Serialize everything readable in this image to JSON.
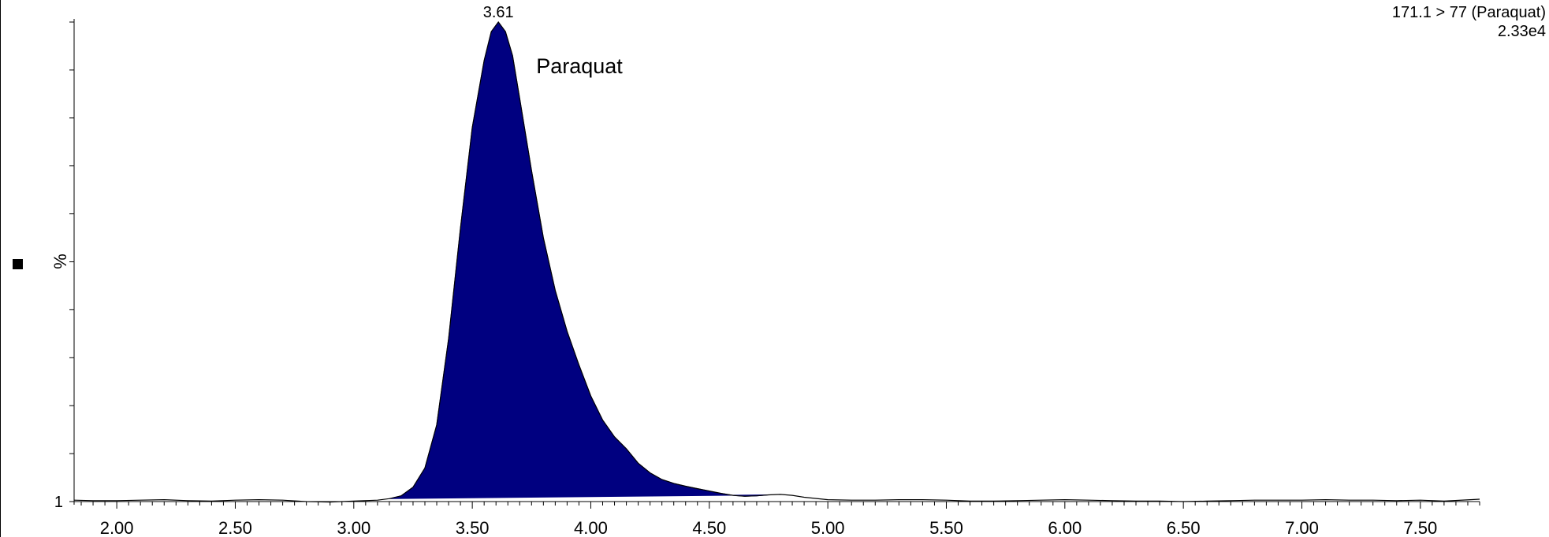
{
  "legend": {
    "trace": "171.1 > 77 (Paraquat)",
    "intensity": "2.33e4"
  },
  "chart_data": {
    "type": "area",
    "title": "",
    "xlabel": "",
    "ylabel": "%",
    "y_min_label": "1",
    "xlim": [
      1.82,
      7.75
    ],
    "ylim": [
      0,
      100
    ],
    "xticks": [
      "2.00",
      "2.50",
      "3.00",
      "3.50",
      "4.00",
      "4.50",
      "5.00",
      "5.50",
      "6.00",
      "6.50",
      "7.00",
      "7.50"
    ],
    "peak": {
      "retention_time": "3.61",
      "name": "Paraquat",
      "integration_start": 3.15,
      "integration_end": 4.75
    },
    "series": [
      {
        "x": [
          1.82,
          1.9,
          2.0,
          2.1,
          2.2,
          2.3,
          2.4,
          2.5,
          2.6,
          2.7,
          2.8,
          2.9,
          3.0,
          3.1,
          3.15,
          3.2,
          3.25,
          3.3,
          3.35,
          3.4,
          3.45,
          3.5,
          3.55,
          3.58,
          3.61,
          3.64,
          3.67,
          3.7,
          3.75,
          3.8,
          3.85,
          3.9,
          3.95,
          4.0,
          4.05,
          4.1,
          4.15,
          4.2,
          4.25,
          4.3,
          4.35,
          4.4,
          4.45,
          4.5,
          4.55,
          4.6,
          4.65,
          4.7,
          4.75,
          4.8,
          4.85,
          4.9,
          5.0,
          5.1,
          5.2,
          5.3,
          5.4,
          5.5,
          5.6,
          5.7,
          5.8,
          5.9,
          6.0,
          6.1,
          6.2,
          6.3,
          6.4,
          6.5,
          6.6,
          6.7,
          6.8,
          6.9,
          7.0,
          7.1,
          7.2,
          7.3,
          7.4,
          7.5,
          7.6,
          7.75
        ],
        "y": [
          0.3,
          0.2,
          0.2,
          0.3,
          0.4,
          0.2,
          0.1,
          0.3,
          0.4,
          0.3,
          0.0,
          -0.1,
          0.1,
          0.3,
          0.6,
          1.2,
          3.0,
          7.0,
          16.0,
          34.0,
          57.0,
          78.0,
          92.0,
          98.0,
          100.0,
          98.0,
          93.0,
          84.0,
          69.0,
          55.0,
          44.0,
          35.5,
          28.5,
          22.0,
          17.0,
          13.5,
          11.0,
          8.0,
          6.0,
          4.6,
          3.8,
          3.2,
          2.7,
          2.2,
          1.7,
          1.3,
          1.1,
          1.2,
          1.4,
          1.5,
          1.3,
          0.9,
          0.4,
          0.3,
          0.3,
          0.4,
          0.4,
          0.3,
          0.1,
          0.1,
          0.2,
          0.3,
          0.4,
          0.3,
          0.2,
          0.1,
          0.1,
          0.0,
          0.1,
          0.2,
          0.3,
          0.3,
          0.3,
          0.4,
          0.3,
          0.3,
          0.2,
          0.3,
          0.1,
          0.5
        ]
      }
    ],
    "colors": {
      "fill": "#000080",
      "line": "#000000"
    }
  }
}
